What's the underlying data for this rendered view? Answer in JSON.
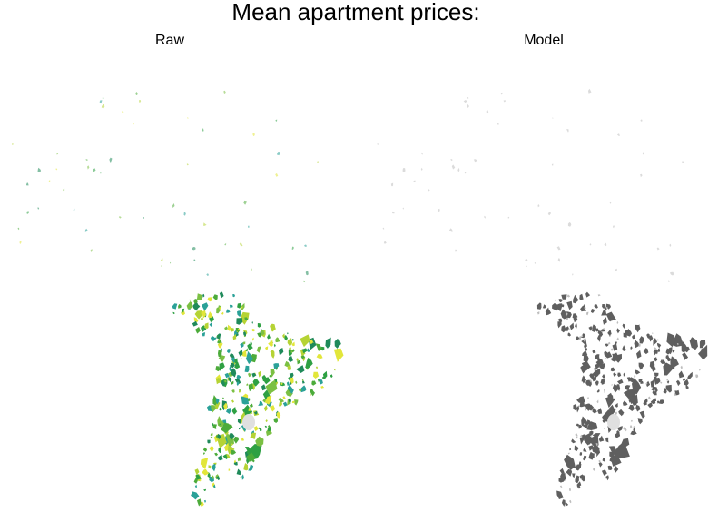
{
  "title": "Mean apartment prices:",
  "panels": [
    {
      "label": "Raw",
      "fill": "green-yellow gradient"
    },
    {
      "label": "Model",
      "fill": "grey"
    }
  ],
  "colors": {
    "raw_palette": [
      "#1f8a5a",
      "#2ea043",
      "#4cab3a",
      "#7bc043",
      "#b5d334",
      "#e2e63a",
      "#2aa198"
    ],
    "model_fill": "#5f5f5f",
    "model_light": "#bdbdbd",
    "lake_highlight": "#e0e0e0"
  }
}
